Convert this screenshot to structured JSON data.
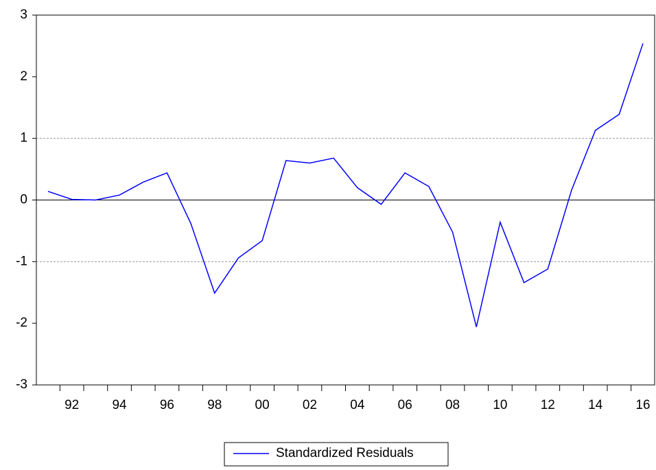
{
  "chart_data": {
    "type": "line",
    "categories": [
      null,
      "92",
      null,
      "94",
      null,
      "96",
      null,
      "98",
      null,
      "00",
      null,
      "02",
      null,
      "04",
      null,
      "06",
      null,
      "08",
      null,
      "10",
      null,
      "12",
      null,
      "14",
      null,
      "16"
    ],
    "series": [
      {
        "name": "Standardized Residuals",
        "color": "#0000ff",
        "values": [
          0.14,
          0.01,
          0.0,
          0.08,
          0.29,
          0.44,
          -0.38,
          -1.51,
          -0.94,
          -0.66,
          0.64,
          0.6,
          0.68,
          0.2,
          -0.07,
          0.44,
          0.22,
          -0.52,
          -2.06,
          -0.36,
          -1.34,
          -1.12,
          0.16,
          1.13,
          1.39,
          2.54
        ]
      }
    ],
    "ylim": [
      -3,
      3
    ],
    "yticks": [
      -3,
      -2,
      -1,
      0,
      1,
      2,
      3
    ],
    "grid_lines": [
      -1,
      1
    ],
    "zero_line": true,
    "legend": "bottom"
  }
}
